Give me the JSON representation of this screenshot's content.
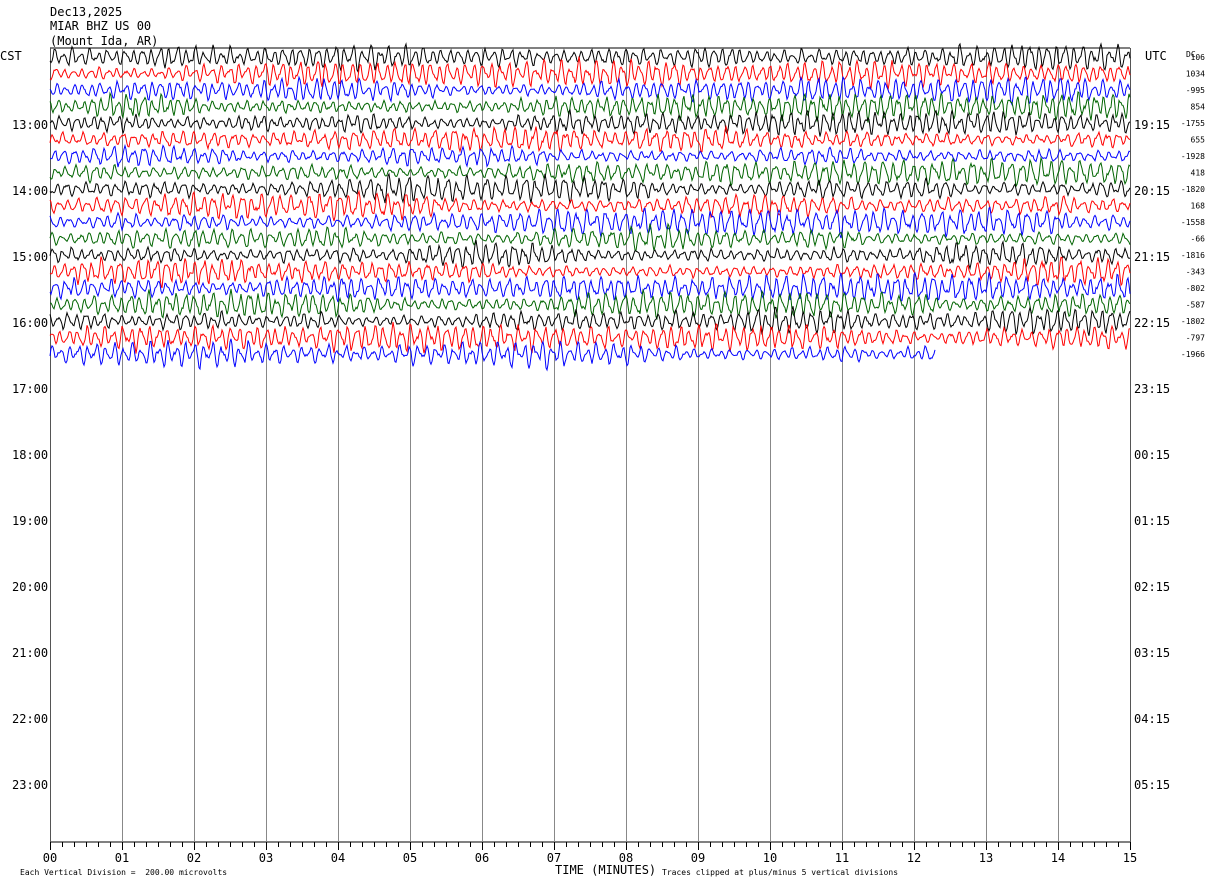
{
  "header": {
    "date": "Dec13,2025",
    "station": "MIAR BHZ US 00",
    "location": "(Mount Ida, AR)",
    "left_zone": "CST",
    "right_zone": "UTC",
    "dc_label": "DC"
  },
  "footer": {
    "vertical_division": "Each Vertical Division =  200.00 microvolts",
    "xlabel": "TIME (MINUTES)",
    "clip_note": "Traces clipped at plus/minus 5 vertical divisions"
  },
  "chart_data": {
    "type": "line",
    "xlabel": "TIME (MINUTES)",
    "x_ticks": [
      "00",
      "01",
      "02",
      "03",
      "04",
      "05",
      "06",
      "07",
      "08",
      "09",
      "10",
      "11",
      "12",
      "13",
      "14",
      "15"
    ],
    "xlim": [
      0,
      15
    ],
    "left_hour_labels": [
      "13:00",
      "14:00",
      "15:00",
      "16:00",
      "17:00",
      "18:00",
      "19:00",
      "20:00",
      "21:00",
      "22:00",
      "23:00"
    ],
    "right_hour_labels": [
      "19:15",
      "20:15",
      "21:15",
      "22:15",
      "23:15",
      "00:15",
      "01:15",
      "02:15",
      "03:15",
      "04:15",
      "05:15"
    ],
    "trace_colors": [
      "#000000",
      "#ff0000",
      "#0000ff",
      "#006400"
    ],
    "grid_vertical": true,
    "dc_offsets": [
      "106",
      "1034",
      "-995",
      "854",
      "-1755",
      "655",
      "-1928",
      "418",
      "-1820",
      "168",
      "-1558",
      "-66",
      "-1816",
      "-343",
      "-802",
      "-587",
      "-1802",
      "-797",
      "-1966"
    ],
    "trace_count": 19,
    "last_trace_end_minute": 12.3
  }
}
